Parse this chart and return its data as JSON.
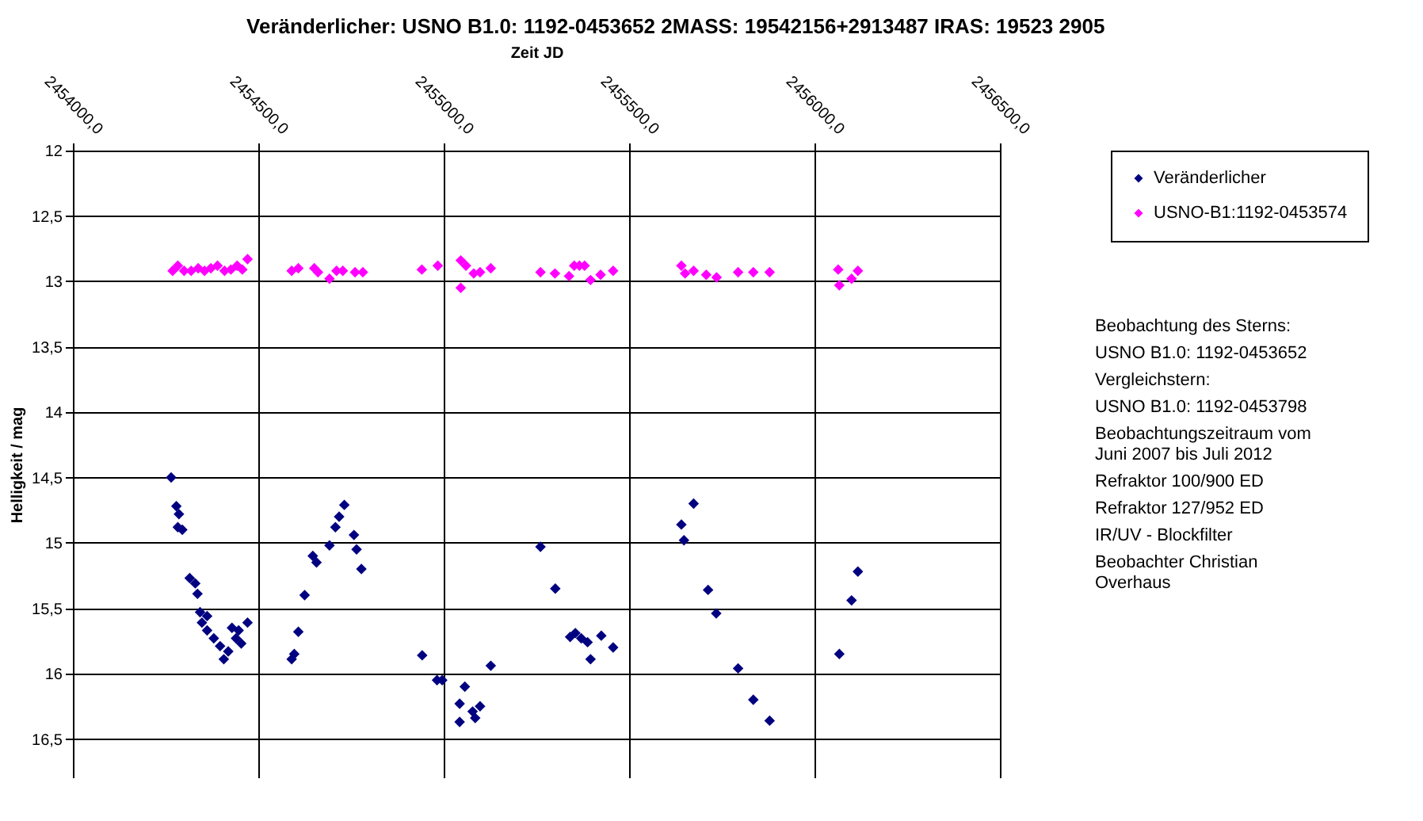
{
  "chart_data": {
    "type": "scatter",
    "title": "Veränderlicher: USNO B1.0: 1192-0453652   2MASS: 19542156+2913487   IRAS: 19523 2905",
    "xlabel": "Zeit JD",
    "ylabel": "Helligkeit / mag",
    "xlim": [
      2454000,
      2456500
    ],
    "xticks": [
      {
        "value": 2454000,
        "label": "2454000,0"
      },
      {
        "value": 2454500,
        "label": "2454500,0"
      },
      {
        "value": 2455000,
        "label": "2455000,0"
      },
      {
        "value": 2455500,
        "label": "2455500,0"
      },
      {
        "value": 2456000,
        "label": "2456000,0"
      },
      {
        "value": 2456500,
        "label": "2456500,0"
      }
    ],
    "ylim": [
      16.8,
      12
    ],
    "yticks": [
      12,
      {
        "value": 12.5,
        "label": "12,5"
      },
      13,
      {
        "value": 13.5,
        "label": "13,5"
      },
      14,
      {
        "value": 14.5,
        "label": "14,5"
      },
      15,
      {
        "value": 15.5,
        "label": "15,5"
      },
      16,
      {
        "value": 16.5,
        "label": "16,5"
      }
    ],
    "grid": true,
    "legend": "right",
    "marker": "diamond",
    "series": [
      {
        "name": "Veränderlicher",
        "color": "#000080",
        "x": [
          2454265,
          2454279,
          2454286,
          2454295,
          2454283,
          2454315,
          2454330,
          2454336,
          2454343,
          2454362,
          2454348,
          2454362,
          2454380,
          2454397,
          2454407,
          2454419,
          2454429,
          2454440,
          2454454,
          2454471,
          2454447,
          2454590,
          2454597,
          2454608,
          2454625,
          2454647,
          2454657,
          2454692,
          2454708,
          2454718,
          2454732,
          2454758,
          2454765,
          2454778,
          2454942,
          2454982,
          2454996,
          2455057,
          2455043,
          2455043,
          2455078,
          2455085,
          2455098,
          2455127,
          2455261,
          2455301,
          2455341,
          2455355,
          2455371,
          2455388,
          2455396,
          2455425,
          2455457,
          2455641,
          2455648,
          2455674,
          2455713,
          2455735,
          2455794,
          2455835,
          2455879,
          2456067,
          2456100,
          2456117
        ],
        "values": [
          14.5,
          14.72,
          14.78,
          14.9,
          14.88,
          15.27,
          15.31,
          15.39,
          15.53,
          15.56,
          15.61,
          15.67,
          15.73,
          15.79,
          15.89,
          15.83,
          15.65,
          15.73,
          15.77,
          15.61,
          15.67,
          15.89,
          15.85,
          15.68,
          15.4,
          15.1,
          15.15,
          15.02,
          14.88,
          14.8,
          14.71,
          14.94,
          15.05,
          15.2,
          15.86,
          16.05,
          16.05,
          16.1,
          16.23,
          16.37,
          16.29,
          16.34,
          16.25,
          15.94,
          15.03,
          15.35,
          15.72,
          15.69,
          15.73,
          15.76,
          15.89,
          15.71,
          15.8,
          14.86,
          14.98,
          14.7,
          15.36,
          15.54,
          15.96,
          16.2,
          16.36,
          15.85,
          15.44,
          15.22
        ]
      },
      {
        "name": "USNO-B1:1192-0453574",
        "color": "#ff00ff",
        "x": [
          2454269,
          2454283,
          2454300,
          2454319,
          2454338,
          2454355,
          2454372,
          2454390,
          2454409,
          2454426,
          2454443,
          2454457,
          2454471,
          2454590,
          2454608,
          2454651,
          2454661,
          2454692,
          2454711,
          2454728,
          2454761,
          2454782,
          2454941,
          2454984,
          2455046,
          2455046,
          2455060,
          2455081,
          2455098,
          2455127,
          2455261,
          2455300,
          2455338,
          2455352,
          2455366,
          2455380,
          2455396,
          2455423,
          2455457,
          2455641,
          2455651,
          2455674,
          2455708,
          2455736,
          2455794,
          2455835,
          2455879,
          2456064,
          2456067,
          2456100,
          2456117
        ],
        "values": [
          12.92,
          12.88,
          12.92,
          12.92,
          12.9,
          12.92,
          12.9,
          12.88,
          12.92,
          12.91,
          12.88,
          12.91,
          12.83,
          12.92,
          12.9,
          12.9,
          12.93,
          12.98,
          12.92,
          12.92,
          12.93,
          12.93,
          12.91,
          12.88,
          12.84,
          13.05,
          12.88,
          12.94,
          12.93,
          12.9,
          12.93,
          12.94,
          12.96,
          12.88,
          12.88,
          12.88,
          12.99,
          12.95,
          12.92,
          12.88,
          12.94,
          12.92,
          12.95,
          12.97,
          12.93,
          12.93,
          12.93,
          12.91,
          13.03,
          12.98,
          12.92
        ]
      }
    ],
    "annotations": [
      "Beobachtung des Sterns:",
      "USNO B1.0: 1192-0453652",
      "Vergleichstern:",
      "USNO B1.0: 1192-0453798",
      "Beobachtungszeitraum vom Juni 2007 bis Juli 2012",
      "Refraktor 100/900 ED",
      "Refraktor 127/952 ED",
      "IR/UV - Blockfilter",
      "Beobachter Christian Overhaus"
    ]
  }
}
